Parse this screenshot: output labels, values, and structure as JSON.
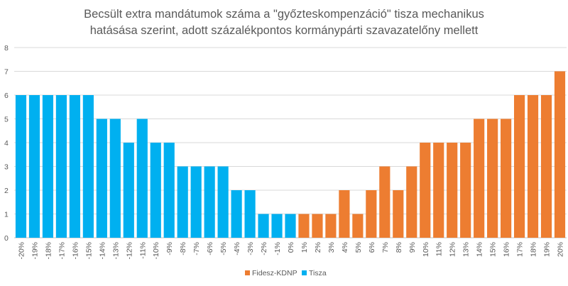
{
  "chart_data": {
    "type": "bar",
    "title": [
      "Becsült extra mandátumok száma a \"győzteskompenzáció\" tisza mechanikus",
      "hatásása szerint, adott százalékpontos kormánypárti szavazatelőny mellett"
    ],
    "xlabel": "",
    "ylabel": "",
    "ylim": [
      0,
      8
    ],
    "yticks": [
      "0",
      "1",
      "2",
      "3",
      "4",
      "5",
      "6",
      "7",
      "8"
    ],
    "grid": true,
    "legend_position": "bottom",
    "categories": [
      "-20%",
      "-19%",
      "-18%",
      "-17%",
      "-16%",
      "-15%",
      "-14%",
      "-13%",
      "-12%",
      "-11%",
      "-10%",
      "-9%",
      "-8%",
      "-7%",
      "-6%",
      "-5%",
      "-4%",
      "-3%",
      "-2%",
      "-1%",
      "0%",
      "1%",
      "2%",
      "3%",
      "4%",
      "5%",
      "6%",
      "7%",
      "8%",
      "9%",
      "10%",
      "11%",
      "12%",
      "13%",
      "14%",
      "15%",
      "16%",
      "17%",
      "18%",
      "19%",
      "20%"
    ],
    "series": [
      {
        "name": "Fidesz-KDNP",
        "color": "#ED7D31",
        "values": [
          null,
          null,
          null,
          null,
          null,
          null,
          null,
          null,
          null,
          null,
          null,
          null,
          null,
          null,
          null,
          null,
          null,
          null,
          null,
          null,
          null,
          1,
          1,
          1,
          2,
          1,
          2,
          3,
          2,
          3,
          4,
          4,
          4,
          4,
          5,
          5,
          5,
          6,
          6,
          6,
          7
        ]
      },
      {
        "name": "Tisza",
        "color": "#00B0F0",
        "values": [
          6,
          6,
          6,
          6,
          6,
          6,
          5,
          5,
          4,
          5,
          4,
          4,
          3,
          3,
          3,
          3,
          2,
          2,
          1,
          1,
          1,
          null,
          null,
          null,
          null,
          null,
          null,
          null,
          null,
          null,
          null,
          null,
          null,
          null,
          null,
          null,
          null,
          null,
          null,
          null,
          null
        ]
      }
    ]
  }
}
